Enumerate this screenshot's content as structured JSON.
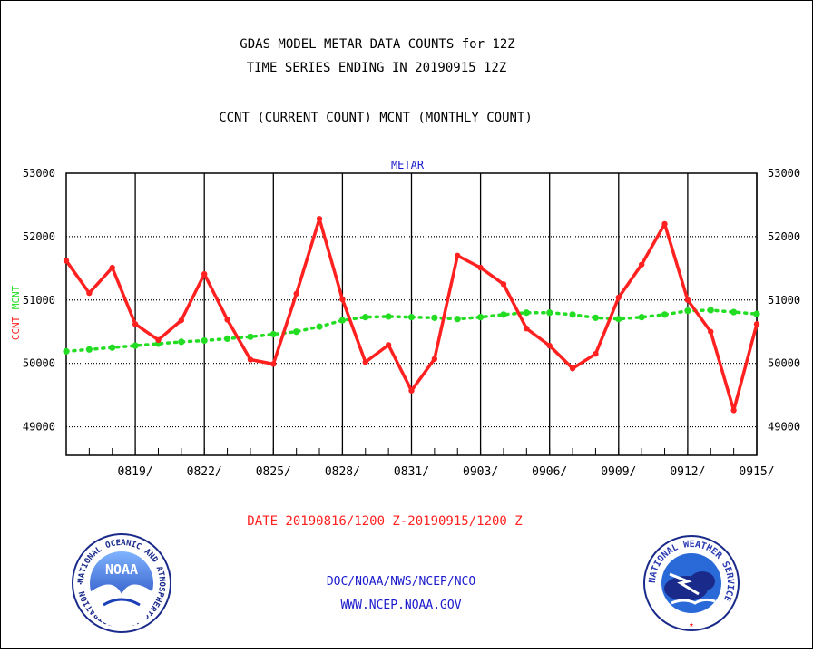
{
  "header": {
    "title_line1": "GDAS MODEL METAR DATA COUNTS for 12Z",
    "title_line2": "TIME SERIES ENDING IN 20190915 12Z",
    "subtitle": "CCNT (CURRENT COUNT) MCNT (MONTHLY COUNT)"
  },
  "footer": {
    "date_range": "DATE 20190816/1200 Z-20190915/1200 Z",
    "credit": "DOC/NOAA/NWS/NCEP/NCO",
    "website": "WWW.NCEP.NOAA.GOV",
    "noaa_logo_text": "NOAA",
    "noaa_ring_text": "NATIONAL OCEANIC AND ATMOSPHERIC ADMINISTRATION · U.S. DEPARTMENT OF COMMERCE ·",
    "nws_ring_text": "NATIONAL WEATHER SERVICE"
  },
  "colors": {
    "ccnt": "#ff2020",
    "mcnt": "#22dd22",
    "text": "#000000",
    "link_blue": "#1a1acc"
  },
  "chart_data": {
    "type": "line",
    "title": "METAR",
    "y_axis_label_left_parts": [
      "CCNT",
      "MCNT"
    ],
    "x_start_date": "0816",
    "x_ticks": [
      {
        "day": 3,
        "label": "0819/"
      },
      {
        "day": 6,
        "label": "0822/"
      },
      {
        "day": 9,
        "label": "0825/"
      },
      {
        "day": 12,
        "label": "0828/"
      },
      {
        "day": 15,
        "label": "0831/"
      },
      {
        "day": 18,
        "label": "0903/"
      },
      {
        "day": 21,
        "label": "0906/"
      },
      {
        "day": 24,
        "label": "0909/"
      },
      {
        "day": 27,
        "label": "0912/"
      },
      {
        "day": 30,
        "label": "0915/"
      }
    ],
    "y_ticks": [
      {
        "value": 49000,
        "label": "49000"
      },
      {
        "value": 50000,
        "label": "50000"
      },
      {
        "value": 51000,
        "label": "51000"
      },
      {
        "value": 52000,
        "label": "52000"
      },
      {
        "value": 53000,
        "label": "53000"
      }
    ],
    "xlim": [
      0,
      30
    ],
    "ylim": [
      48550,
      53000
    ],
    "series": [
      {
        "name": "CCNT",
        "values": [
          51620,
          51110,
          51510,
          50620,
          50370,
          50680,
          51410,
          50690,
          50060,
          49990,
          51100,
          52280,
          51010,
          50020,
          50290,
          49570,
          50070,
          51700,
          51510,
          51250,
          50550,
          50280,
          49920,
          50150,
          51040,
          51560,
          52200,
          51000,
          50500,
          49260,
          50620
        ]
      },
      {
        "name": "MCNT",
        "values": [
          50190,
          50220,
          50250,
          50280,
          50310,
          50340,
          50360,
          50390,
          50420,
          50460,
          50500,
          50580,
          50680,
          50730,
          50740,
          50730,
          50720,
          50700,
          50730,
          50770,
          50800,
          50800,
          50770,
          50720,
          50700,
          50730,
          50770,
          50830,
          50840,
          50810,
          50780
        ]
      }
    ]
  }
}
